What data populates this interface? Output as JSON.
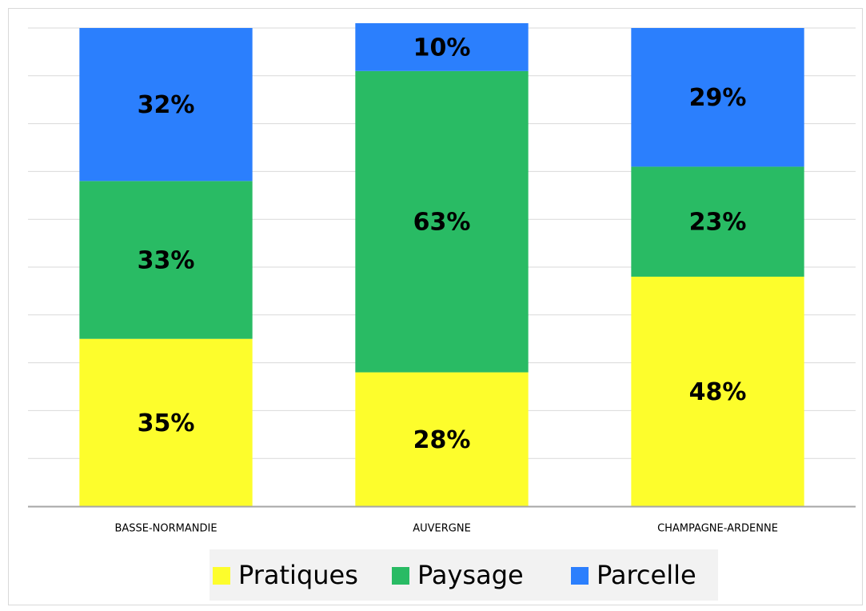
{
  "chart_data": {
    "type": "stacked_bar",
    "categories": [
      "BASSE-NORMANDIE",
      "AUVERGNE",
      "CHAMPAGNE-ARDENNE"
    ],
    "series": [
      {
        "name": "Pratiques",
        "color": "#fdfd2c",
        "values": [
          35,
          28,
          48
        ],
        "value_labels": [
          "35%",
          "28%",
          "48%"
        ]
      },
      {
        "name": "Paysage",
        "color": "#29bb64",
        "values": [
          33,
          63,
          23
        ],
        "value_labels": [
          "33%",
          "63%",
          "23%"
        ]
      },
      {
        "name": "Parcelle",
        "color": "#2b7ffd",
        "values": [
          32,
          10,
          29
        ],
        "value_labels": [
          "32%",
          "10%",
          "29%"
        ]
      }
    ],
    "ylim": [
      0,
      100
    ],
    "yticks": [
      0,
      10,
      20,
      30,
      40,
      50,
      60,
      70,
      80,
      90,
      100
    ],
    "grid": true,
    "legend": "bottom"
  }
}
